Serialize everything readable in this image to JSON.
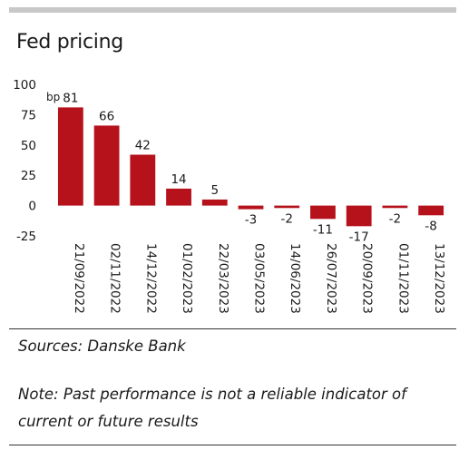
{
  "chart_data": {
    "type": "bar",
    "title": "Fed pricing",
    "ylabel": "",
    "unit_label": "bp",
    "xlabel": "",
    "ylim": [
      -25,
      100
    ],
    "yticks": [
      100,
      75,
      50,
      25,
      0,
      -25
    ],
    "categories": [
      "21/09/2022",
      "02/11/2022",
      "14/12/2022",
      "01/02/2023",
      "22/03/2023",
      "03/05/2023",
      "14/06/2023",
      "26/07/2023",
      "20/09/2023",
      "01/11/2023",
      "13/12/2023"
    ],
    "values": [
      81,
      66,
      42,
      14,
      5,
      -3,
      -2,
      -11,
      -17,
      -2,
      -8
    ],
    "data_labels": [
      "81",
      "66",
      "42",
      "14",
      "5",
      "-3",
      "-2",
      "-11",
      "-17",
      "-2",
      "-8"
    ],
    "bar_color": "#b5121b",
    "grid": false,
    "legend": "none"
  },
  "footer": {
    "source": "Sources: Danske Bank",
    "note": "Note: Past performance is not a reliable indicator of current or future results"
  }
}
